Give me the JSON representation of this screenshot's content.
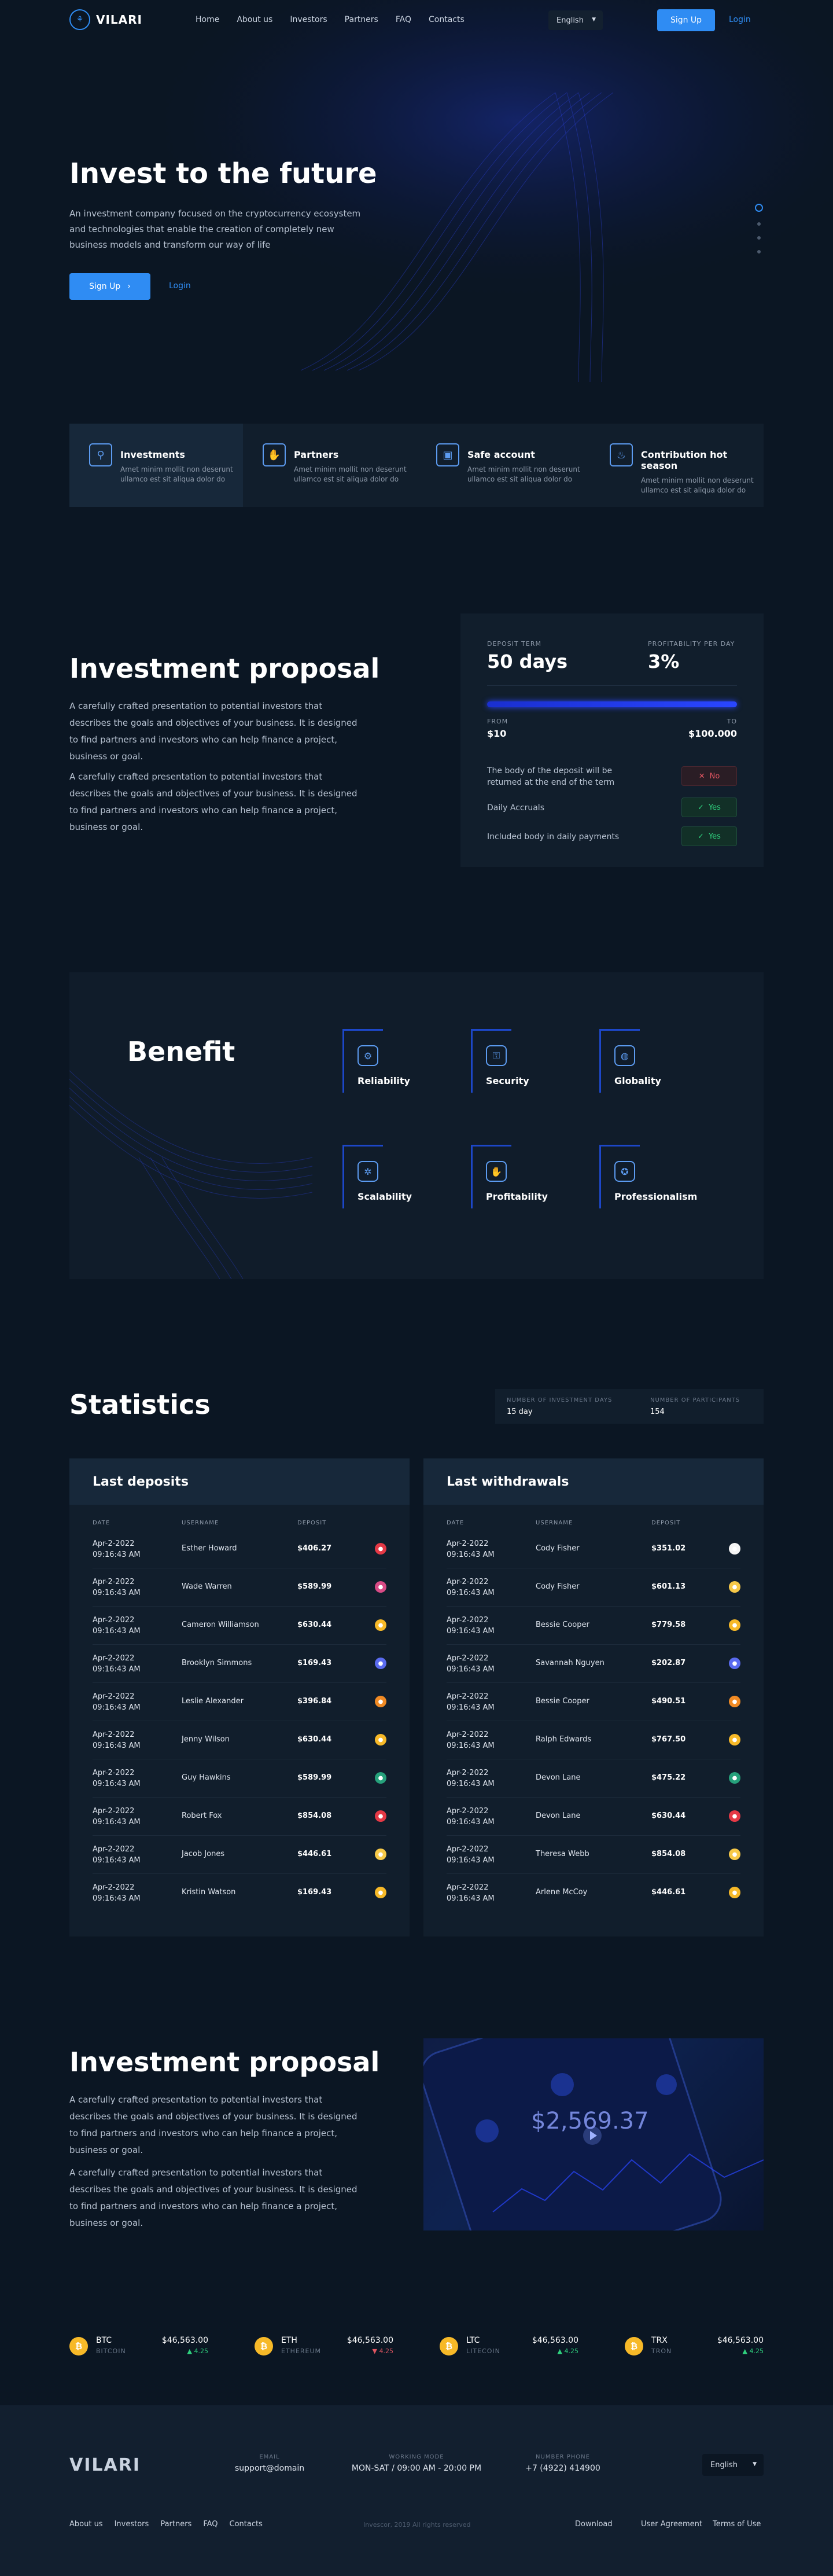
{
  "header": {
    "logo": "VILARI",
    "nav": [
      "Home",
      "About us",
      "Investors",
      "Partners",
      "FAQ",
      "Contacts"
    ],
    "language": "English",
    "signup": "Sign Up",
    "login": "Login"
  },
  "hero": {
    "title": "Invest to the future",
    "text": "An investment company focused on the cryptocurrency ecosystem and technologies that enable the creation of completely new business models and transform our way of life",
    "signup": "Sign Up",
    "login": "Login"
  },
  "features": [
    {
      "title": "Investments",
      "text": "Amet minim mollit non deserunt ullamco est sit aliqua dolor do",
      "icon": "investments-icon"
    },
    {
      "title": "Partners",
      "text": "Amet minim mollit non deserunt ullamco est sit aliqua dolor do",
      "icon": "handshake-icon"
    },
    {
      "title": "Safe account",
      "text": "Amet minim mollit non deserunt ullamco est sit aliqua dolor do",
      "icon": "safe-icon"
    },
    {
      "title": "Contribution hot season",
      "text": "Amet minim mollit non deserunt ullamco est sit aliqua dolor do",
      "icon": "contribution-icon"
    }
  ],
  "proposal": {
    "title": "Investment proposal",
    "p1": "A carefully crafted presentation to potential investors that describes the goals and objectives of your business. It is designed to find partners and investors who can help finance a project, business or goal.",
    "p2": "A carefully crafted presentation to potential investors that describes the goals and objectives of your business. It is designed to find partners and investors who can help finance a project, business or goal."
  },
  "deposit": {
    "term_label": "DEPOSIT TERM",
    "term_value": "50 days",
    "profit_label": "PROFITABILITY PER DAY",
    "profit_value": "3%",
    "slider_fraction": 1.0,
    "from_label": "FROM",
    "from_value": "$10",
    "to_label": "TO",
    "to_value": "$100.000",
    "rows": [
      {
        "text": "The body of the deposit will be returned at the end of the term",
        "badge": "No",
        "ok": false
      },
      {
        "text": "Daily Accruals",
        "badge": "Yes",
        "ok": true
      },
      {
        "text": "Included body in daily payments",
        "badge": "Yes",
        "ok": true
      }
    ]
  },
  "benefit": {
    "title": "Benefit",
    "items": [
      {
        "label": "Reliability",
        "icon": "reliability-icon"
      },
      {
        "label": "Security",
        "icon": "security-icon"
      },
      {
        "label": "Globality",
        "icon": "globe-icon"
      },
      {
        "label": "Scalability",
        "icon": "scalability-icon"
      },
      {
        "label": "Profitability",
        "icon": "profitability-icon"
      },
      {
        "label": "Professionalism",
        "icon": "award-icon"
      }
    ]
  },
  "statistics": {
    "title": "Statistics",
    "days_label": "NUMBER OF INVESTMENT DAYS",
    "days_value": "15 day",
    "participants_label": "NUMBER OF PARTICIPANTS",
    "participants_value": "154",
    "deposits": {
      "title": "Last deposits",
      "cols": [
        "DATE",
        "USERNAME",
        "DEPOSIT"
      ],
      "rows": [
        {
          "date": "Apr-2-2022",
          "time": "09:16:43 AM",
          "user": "Esther Howard",
          "amount": "$406.27",
          "coin": "#e53946"
        },
        {
          "date": "Apr-2-2022",
          "time": "09:16:43 AM",
          "user": "Wade Warren",
          "amount": "$589.99",
          "coin": "#d94b86"
        },
        {
          "date": "Apr-2-2022",
          "time": "09:16:43 AM",
          "user": "Cameron Williamson",
          "amount": "$630.44",
          "coin": "#f7b928"
        },
        {
          "date": "Apr-2-2022",
          "time": "09:16:43 AM",
          "user": "Brooklyn Simmons",
          "amount": "$169.43",
          "coin": "#5a6bef"
        },
        {
          "date": "Apr-2-2022",
          "time": "09:16:43 AM",
          "user": "Leslie Alexander",
          "amount": "$396.84",
          "coin": "#f08a24"
        },
        {
          "date": "Apr-2-2022",
          "time": "09:16:43 AM",
          "user": "Jenny Wilson",
          "amount": "$630.44",
          "coin": "#f7b928"
        },
        {
          "date": "Apr-2-2022",
          "time": "09:16:43 AM",
          "user": "Guy Hawkins",
          "amount": "$589.99",
          "coin": "#26a17b"
        },
        {
          "date": "Apr-2-2022",
          "time": "09:16:43 AM",
          "user": "Robert Fox",
          "amount": "$854.08",
          "coin": "#e53946"
        },
        {
          "date": "Apr-2-2022",
          "time": "09:16:43 AM",
          "user": "Jacob Jones",
          "amount": "$446.61",
          "coin": "#f7c948"
        },
        {
          "date": "Apr-2-2022",
          "time": "09:16:43 AM",
          "user": "Kristin Watson",
          "amount": "$169.43",
          "coin": "#f7b928"
        }
      ]
    },
    "withdrawals": {
      "title": "Last withdrawals",
      "cols": [
        "DATE",
        "USERNAME",
        "DEPOSIT"
      ],
      "rows": [
        {
          "date": "Apr-2-2022",
          "time": "09:16:43 AM",
          "user": "Cody Fisher",
          "amount": "$351.02",
          "coin": "#f5f5f5"
        },
        {
          "date": "Apr-2-2022",
          "time": "09:16:43 AM",
          "user": "Cody Fisher",
          "amount": "$601.13",
          "coin": "#f7c948"
        },
        {
          "date": "Apr-2-2022",
          "time": "09:16:43 AM",
          "user": "Bessie Cooper",
          "amount": "$779.58",
          "coin": "#f7b928"
        },
        {
          "date": "Apr-2-2022",
          "time": "09:16:43 AM",
          "user": "Savannah Nguyen",
          "amount": "$202.87",
          "coin": "#5a6bef"
        },
        {
          "date": "Apr-2-2022",
          "time": "09:16:43 AM",
          "user": "Bessie Cooper",
          "amount": "$490.51",
          "coin": "#f08a24"
        },
        {
          "date": "Apr-2-2022",
          "time": "09:16:43 AM",
          "user": "Ralph Edwards",
          "amount": "$767.50",
          "coin": "#f7b928"
        },
        {
          "date": "Apr-2-2022",
          "time": "09:16:43 AM",
          "user": "Devon Lane",
          "amount": "$475.22",
          "coin": "#26a17b"
        },
        {
          "date": "Apr-2-2022",
          "time": "09:16:43 AM",
          "user": "Devon Lane",
          "amount": "$630.44",
          "coin": "#e53946"
        },
        {
          "date": "Apr-2-2022",
          "time": "09:16:43 AM",
          "user": "Theresa Webb",
          "amount": "$854.08",
          "coin": "#f7c948"
        },
        {
          "date": "Apr-2-2022",
          "time": "09:16:43 AM",
          "user": "Arlene McCoy",
          "amount": "$446.61",
          "coin": "#f7b928"
        }
      ]
    }
  },
  "proposal2": {
    "title": "Investment proposal",
    "p1": "A carefully crafted presentation to potential investors that describes the goals and objectives of your business. It is designed to find partners and investors who can help finance a project, business or goal.",
    "p2": "A carefully crafted presentation to potential investors that describes the goals and objectives of your business. It is designed to find partners and investors who can help finance a project, business or goal.",
    "phone_balance": "$2,569.37"
  },
  "tickers": [
    {
      "sym": "BTC",
      "name": "BITCOIN",
      "price": "$46,563.00",
      "change": "4.25",
      "up": true
    },
    {
      "sym": "ETH",
      "name": "ETHEREUM",
      "price": "$46,563.00",
      "change": "4.25",
      "up": false
    },
    {
      "sym": "LTC",
      "name": "LITECOIN",
      "price": "$46,563.00",
      "change": "4.25",
      "up": true
    },
    {
      "sym": "TRX",
      "name": "TRON",
      "price": "$46,563.00",
      "change": "4.25",
      "up": true
    }
  ],
  "footer": {
    "logo": "VILARI",
    "email_label": "EMAIL",
    "email": "support@domain",
    "hours_label": "WORKING MODE",
    "hours": "MON-SAT / 09:00 AM - 20:00 PM",
    "phone_label": "NUMBER PHONE",
    "phone": "+7 (4922) 414900",
    "language": "English",
    "nav": [
      "About us",
      "Investors",
      "Partners",
      "FAQ",
      "Contacts"
    ],
    "copyright": "Invescor, 2019 All rights reserved",
    "download": "Download",
    "agreement": "User Agreement",
    "terms": "Terms of Use"
  },
  "colors": {
    "accent": "#2f8cf3",
    "bg": "#0b1623",
    "up": "#2fd07e",
    "down": "#e05561"
  }
}
